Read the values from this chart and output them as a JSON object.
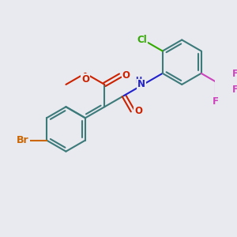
{
  "bg_color": "#e8eaf0",
  "bond_color": "#3d7a7a",
  "bond_width": 1.5,
  "atom_colors": {
    "Br": "#cc6600",
    "O": "#cc2200",
    "N": "#2222cc",
    "Cl": "#33aa00",
    "F": "#cc44bb",
    "C": "#3d7a7a"
  },
  "font_size": 8.5
}
